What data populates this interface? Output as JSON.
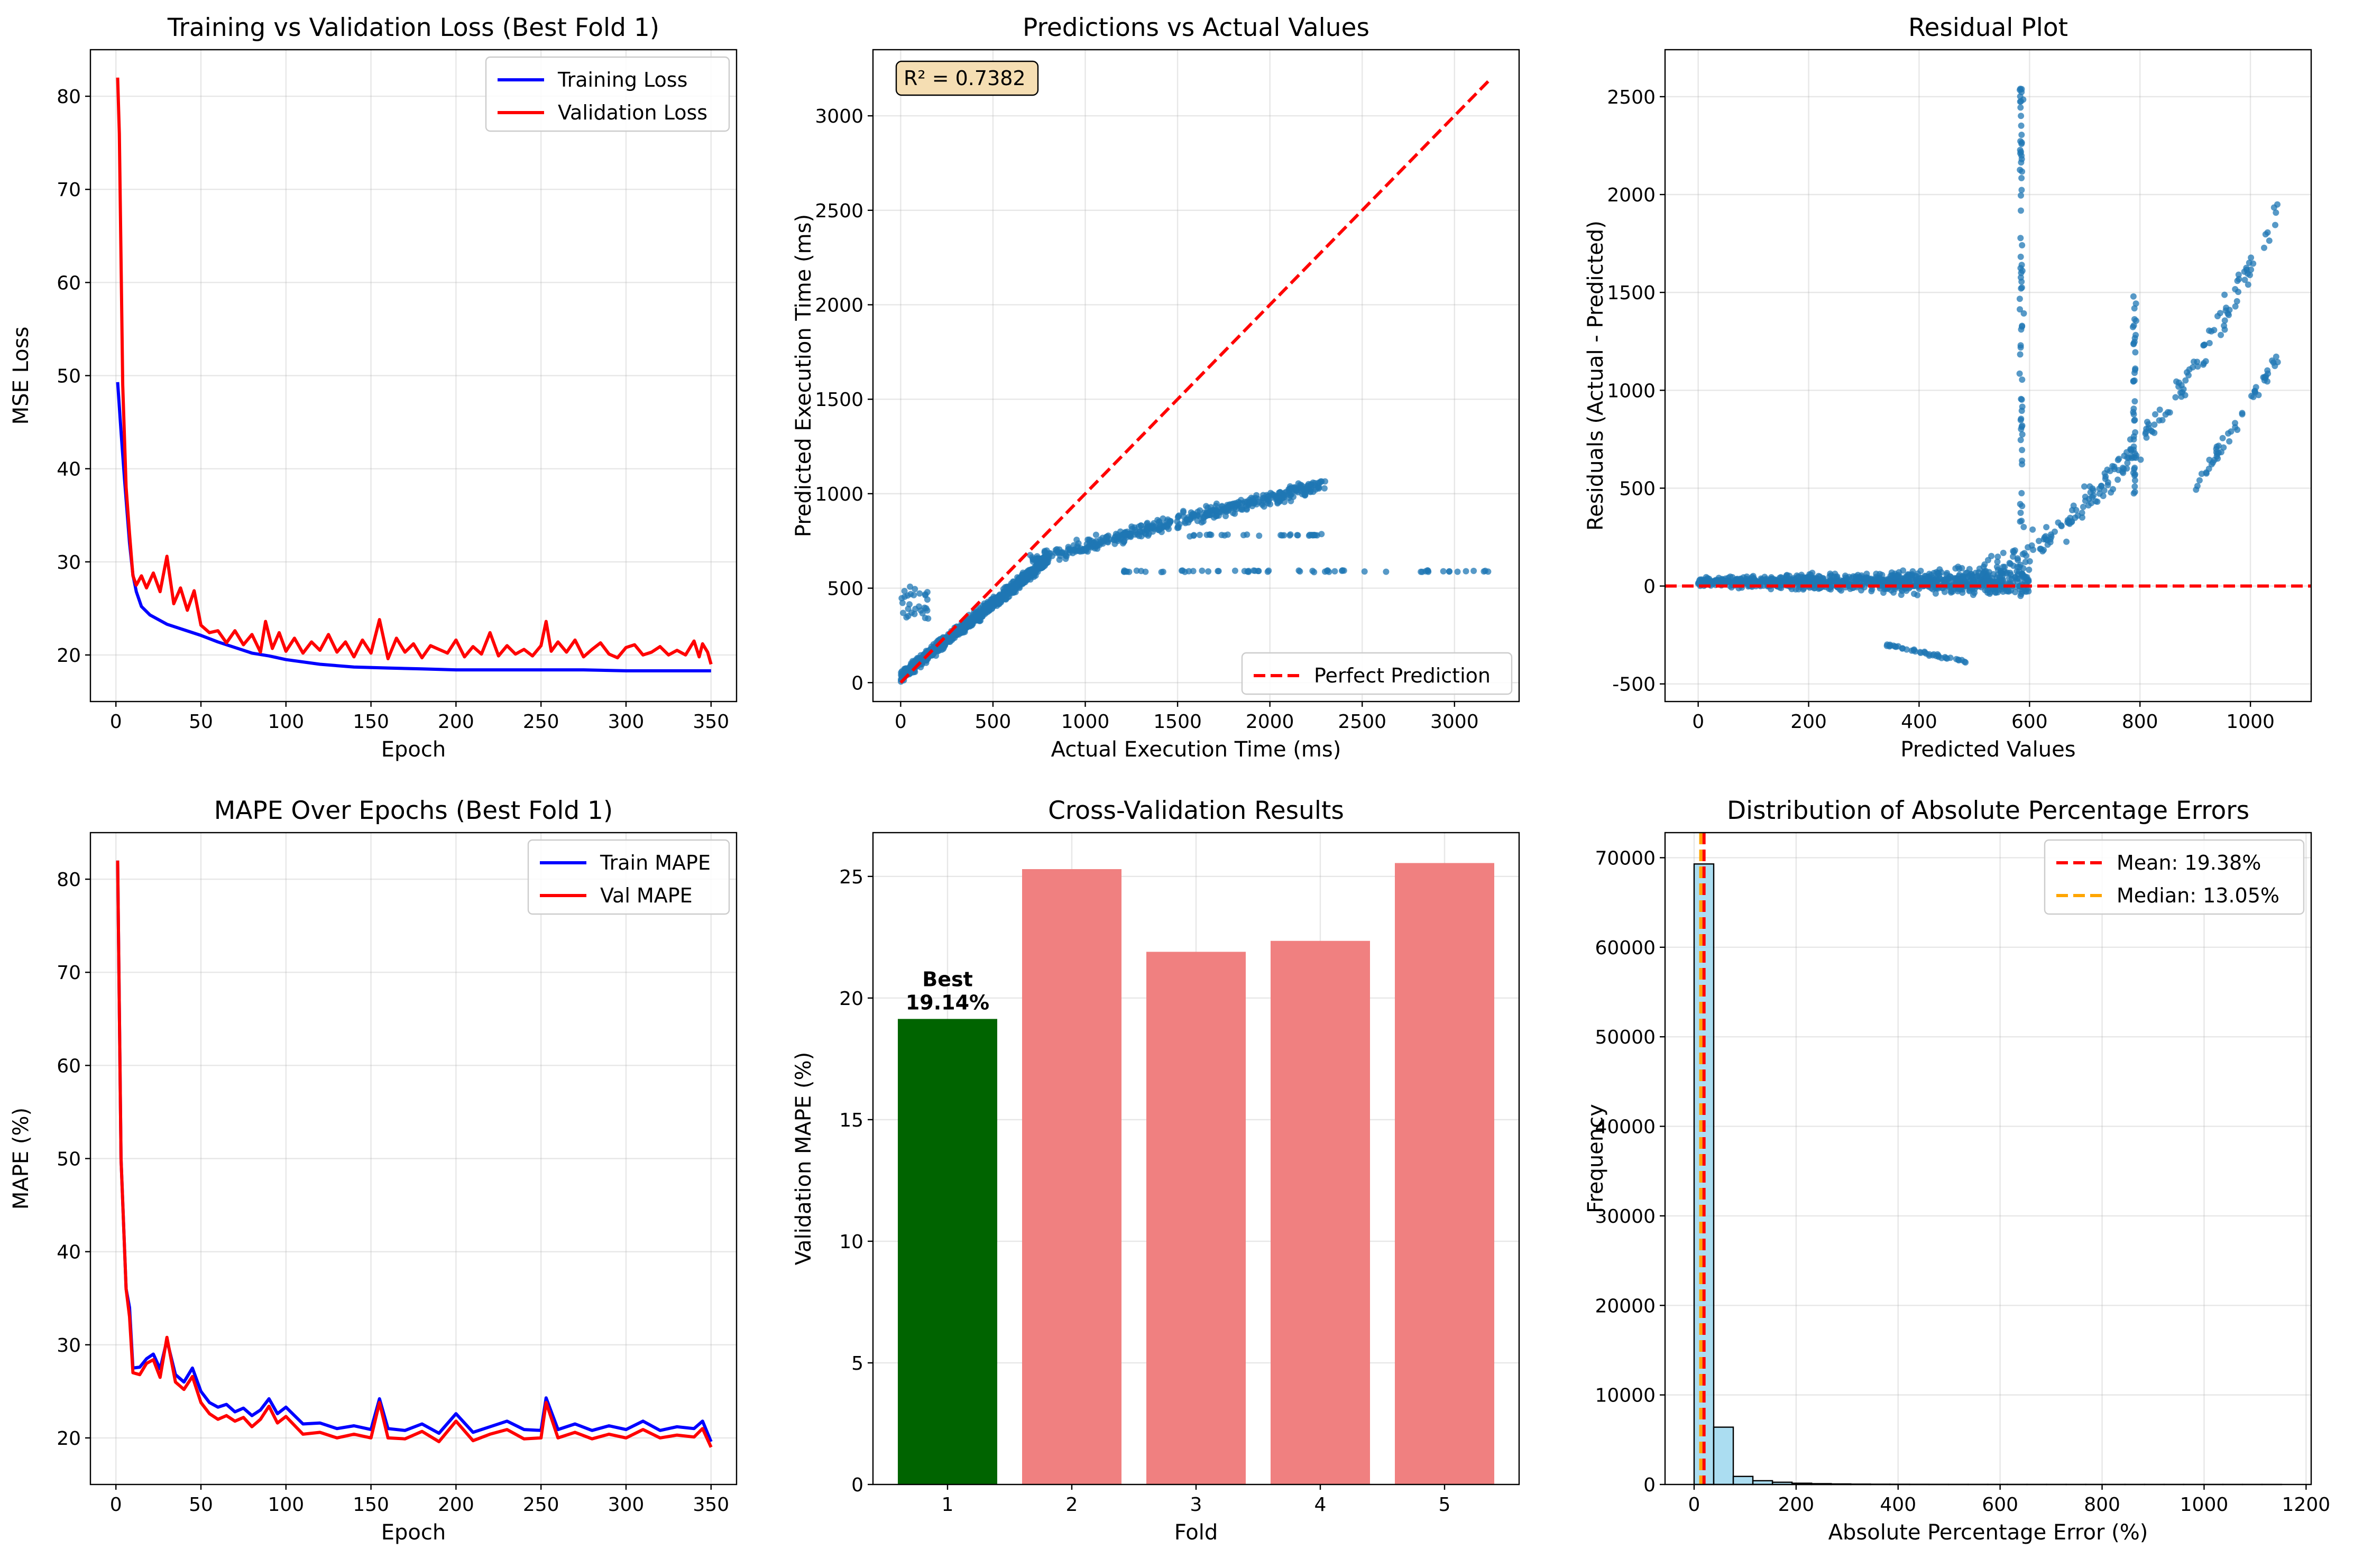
{
  "chart_data": [
    {
      "type": "line",
      "title": "Training vs Validation Loss (Best Fold 1)",
      "xlabel": "Epoch",
      "ylabel": "MSE Loss",
      "xlim": [
        -15,
        365
      ],
      "ylim": [
        15,
        85
      ],
      "xticks": [
        0,
        50,
        100,
        150,
        200,
        250,
        300,
        350
      ],
      "yticks": [
        20,
        30,
        40,
        50,
        60,
        70,
        80
      ],
      "grid": true,
      "legend": "top-right",
      "series": [
        {
          "name": "Training Loss",
          "color": "#0000ff",
          "x": [
            1,
            3,
            5,
            8,
            10,
            12,
            15,
            20,
            25,
            30,
            40,
            50,
            60,
            70,
            80,
            90,
            100,
            120,
            140,
            160,
            180,
            200,
            220,
            250,
            275,
            300,
            325,
            350
          ],
          "y": [
            49.3,
            44,
            39,
            32,
            28.6,
            26.8,
            25.2,
            24.3,
            23.8,
            23.3,
            22.7,
            22.1,
            21.4,
            20.8,
            20.2,
            19.9,
            19.5,
            19.0,
            18.7,
            18.6,
            18.5,
            18.4,
            18.4,
            18.4,
            18.4,
            18.3,
            18.3,
            18.3
          ]
        },
        {
          "name": "Validation Loss",
          "color": "#ff0000",
          "x": [
            1,
            2,
            4,
            6,
            8,
            10,
            12,
            15,
            18,
            22,
            26,
            30,
            34,
            38,
            42,
            46,
            50,
            55,
            60,
            65,
            70,
            75,
            80,
            85,
            88,
            92,
            96,
            100,
            105,
            110,
            115,
            120,
            125,
            130,
            135,
            140,
            145,
            150,
            155,
            160,
            165,
            170,
            175,
            180,
            185,
            190,
            195,
            200,
            205,
            210,
            215,
            220,
            225,
            230,
            235,
            240,
            245,
            250,
            253,
            256,
            260,
            265,
            270,
            275,
            280,
            285,
            290,
            295,
            300,
            305,
            310,
            315,
            320,
            325,
            330,
            335,
            340,
            343,
            345,
            348,
            350
          ],
          "y": [
            82,
            76,
            49,
            38,
            33,
            28.5,
            27.5,
            28.5,
            27.2,
            28.8,
            26.8,
            30.6,
            25.5,
            27.2,
            24.8,
            26.9,
            23.2,
            22.4,
            22.6,
            21.3,
            22.6,
            21.1,
            22.2,
            20.3,
            23.6,
            20.7,
            22.4,
            20.4,
            21.8,
            20.2,
            21.4,
            20.5,
            22.2,
            20.3,
            21.4,
            19.8,
            21.6,
            20.2,
            23.8,
            19.6,
            21.8,
            20.3,
            21.2,
            19.7,
            21.0,
            20.6,
            20.2,
            21.6,
            19.8,
            20.9,
            20.1,
            22.4,
            19.9,
            21.0,
            20.1,
            20.6,
            19.9,
            21.0,
            23.6,
            20.4,
            21.4,
            20.3,
            21.6,
            19.8,
            20.6,
            21.3,
            20.1,
            19.7,
            20.8,
            21.1,
            20.0,
            20.3,
            20.9,
            20.0,
            20.5,
            20.0,
            21.5,
            19.8,
            21.2,
            20.3,
            19.0
          ]
        }
      ]
    },
    {
      "type": "scatter",
      "title": "Predictions vs Actual Values",
      "xlabel": "Actual Execution Time (ms)",
      "ylabel": "Predicted Execution Time (ms)",
      "xlim": [
        -150,
        3350
      ],
      "ylim": [
        -100,
        3350
      ],
      "xticks": [
        0,
        500,
        1000,
        1500,
        2000,
        2500,
        3000
      ],
      "yticks": [
        0,
        500,
        1000,
        1500,
        2000,
        2500,
        3000
      ],
      "grid": true,
      "legend": "bottom-right",
      "annotation": "R² = 0.7382",
      "reference_line": {
        "name": "Perfect Prediction",
        "color": "#ff0000",
        "x": [
          0,
          3200
        ],
        "y": [
          0,
          3200
        ]
      },
      "point_color": "#1f77b4"
    },
    {
      "type": "scatter",
      "title": "Residual Plot",
      "xlabel": "Predicted Values",
      "ylabel": "Residuals (Actual - Predicted)",
      "xlim": [
        -60,
        1110
      ],
      "ylim": [
        -590,
        2740
      ],
      "xticks": [
        0,
        200,
        400,
        600,
        800,
        1000
      ],
      "yticks": [
        -500,
        0,
        500,
        1000,
        1500,
        2000,
        2500
      ],
      "grid": true,
      "zero_line": {
        "color": "#ff0000",
        "y": 0
      },
      "point_color": "#1f77b4"
    },
    {
      "type": "line",
      "title": "MAPE Over Epochs (Best Fold 1)",
      "xlabel": "Epoch",
      "ylabel": "MAPE (%)",
      "xlim": [
        -15,
        365
      ],
      "ylim": [
        15,
        85
      ],
      "xticks": [
        0,
        50,
        100,
        150,
        200,
        250,
        300,
        350
      ],
      "yticks": [
        20,
        30,
        40,
        50,
        60,
        70,
        80
      ],
      "grid": true,
      "legend": "top-right",
      "series": [
        {
          "name": "Train MAPE",
          "color": "#0000ff",
          "x": [
            1,
            3,
            6,
            8,
            10,
            14,
            18,
            22,
            26,
            30,
            35,
            40,
            45,
            50,
            55,
            60,
            65,
            70,
            75,
            80,
            85,
            90,
            95,
            100,
            110,
            120,
            130,
            140,
            150,
            155,
            160,
            170,
            180,
            190,
            200,
            210,
            220,
            230,
            240,
            250,
            253,
            260,
            270,
            280,
            290,
            300,
            310,
            320,
            330,
            340,
            345,
            350
          ],
          "y": [
            82,
            50,
            36,
            34,
            27.5,
            27.6,
            28.5,
            29,
            27.4,
            30.5,
            26.8,
            26.0,
            27.5,
            25.0,
            23.8,
            23.3,
            23.6,
            22.8,
            23.2,
            22.4,
            23.0,
            24.2,
            22.6,
            23.3,
            21.5,
            21.6,
            21.0,
            21.3,
            20.9,
            24.2,
            21.0,
            20.8,
            21.5,
            20.5,
            22.6,
            20.6,
            21.2,
            21.8,
            20.9,
            20.8,
            24.3,
            20.9,
            21.5,
            20.8,
            21.3,
            20.9,
            21.8,
            20.8,
            21.2,
            21.0,
            21.8,
            19.6
          ]
        },
        {
          "name": "Val MAPE",
          "color": "#ff0000",
          "x": [
            1,
            3,
            6,
            8,
            10,
            14,
            18,
            22,
            26,
            30,
            35,
            40,
            45,
            50,
            55,
            60,
            65,
            70,
            75,
            80,
            85,
            90,
            95,
            100,
            110,
            120,
            130,
            140,
            150,
            155,
            160,
            170,
            180,
            190,
            200,
            210,
            220,
            230,
            240,
            250,
            253,
            260,
            270,
            280,
            290,
            300,
            310,
            320,
            330,
            340,
            345,
            350
          ],
          "y": [
            82,
            50,
            36,
            33,
            27,
            26.8,
            28,
            28.4,
            26.5,
            30.8,
            26.0,
            25.2,
            26.6,
            23.8,
            22.6,
            22.0,
            22.4,
            21.8,
            22.2,
            21.2,
            22.0,
            23.4,
            21.6,
            22.3,
            20.4,
            20.6,
            20.0,
            20.4,
            20.0,
            23.8,
            20.0,
            19.9,
            20.7,
            19.6,
            21.8,
            19.7,
            20.4,
            20.9,
            19.9,
            20.0,
            23.8,
            20.0,
            20.6,
            19.9,
            20.4,
            20.0,
            20.9,
            20.0,
            20.3,
            20.1,
            21.0,
            19.0
          ]
        }
      ]
    },
    {
      "type": "bar",
      "title": "Cross-Validation Results",
      "xlabel": "Fold",
      "ylabel": "Validation MAPE (%)",
      "categories": [
        "1",
        "2",
        "3",
        "4",
        "5"
      ],
      "values": [
        19.14,
        25.3,
        21.9,
        22.35,
        25.55
      ],
      "colors": [
        "#006400",
        "#f08080",
        "#f08080",
        "#f08080",
        "#f08080"
      ],
      "ylim": [
        0,
        26.8
      ],
      "yticks": [
        0,
        5,
        10,
        15,
        20,
        25
      ],
      "grid": true,
      "best_label": "Best\n19.14%",
      "best_label_color": "#006400"
    },
    {
      "type": "bar",
      "title": "Distribution of Absolute Percentage Errors",
      "xlabel": "Absolute Percentage Error (%)",
      "ylabel": "Frequency",
      "bin_edges": [
        0,
        38.4,
        76.8,
        115.2,
        153.6,
        192.0,
        230.4,
        268.8,
        307.2,
        345.6,
        384.0,
        422.4,
        460.8,
        499.2,
        537.6,
        576.0,
        614.4,
        652.8,
        691.2,
        729.6,
        768.0,
        806.4,
        844.8,
        883.2,
        921.6,
        960.0,
        998.4,
        1036.8,
        1075.2,
        1113.6,
        1152.0
      ],
      "values": [
        69300,
        6400,
        900,
        420,
        250,
        140,
        90,
        60,
        40,
        30,
        25,
        20,
        15,
        12,
        10,
        8,
        6,
        5,
        4,
        3,
        3,
        2,
        2,
        2,
        1,
        1,
        1,
        1,
        1,
        1
      ],
      "bar_color": "#87ceeb",
      "xlim": [
        -57,
        1210
      ],
      "ylim": [
        0,
        72800
      ],
      "xticks": [
        0,
        200,
        400,
        600,
        800,
        1000,
        1200
      ],
      "yticks": [
        0,
        10000,
        20000,
        30000,
        40000,
        50000,
        60000,
        70000
      ],
      "grid": true,
      "legend": "top-right",
      "vlines": [
        {
          "name": "Mean: 19.38%",
          "x": 19.38,
          "color": "#ff0000"
        },
        {
          "name": "Median: 13.05%",
          "x": 13.05,
          "color": "#ffa500"
        }
      ]
    }
  ]
}
